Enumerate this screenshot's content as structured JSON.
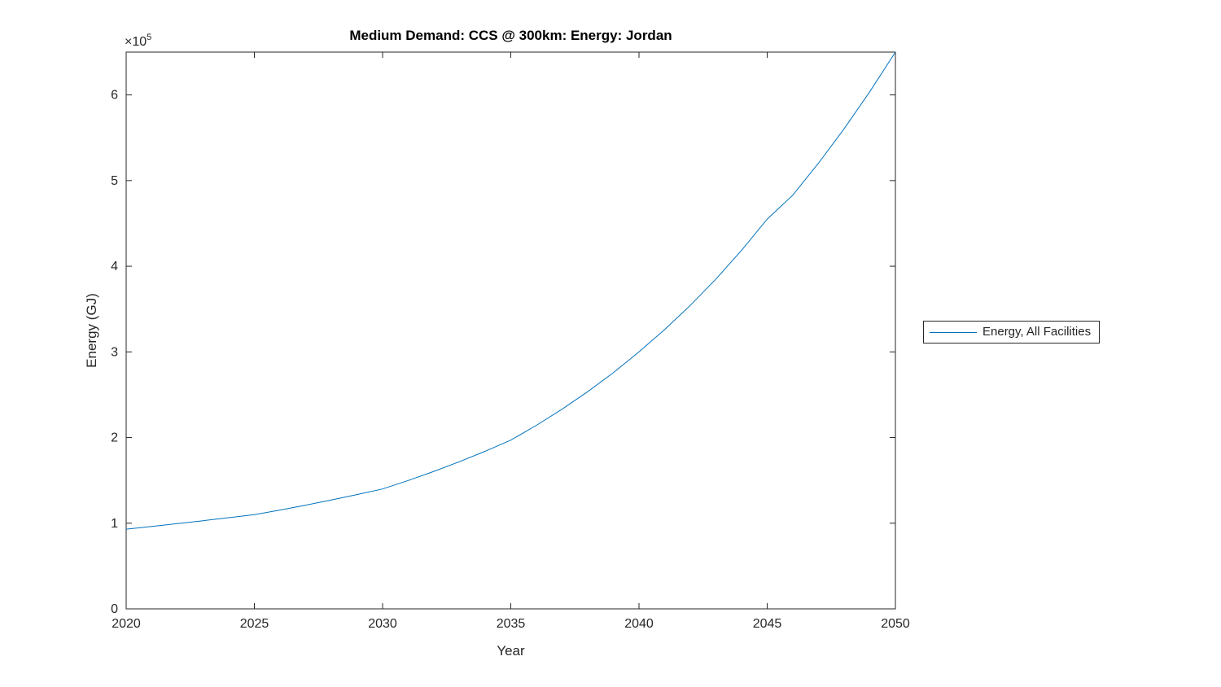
{
  "chart_data": {
    "type": "line",
    "title": "Medium Demand: CCS @ 300km: Energy: Jordan",
    "xlabel": "Year",
    "ylabel": "Energy (GJ)",
    "y_axis_exponent": {
      "base": "×10",
      "power": "5"
    },
    "xlim": [
      2020,
      2050
    ],
    "ylim": [
      0,
      650000
    ],
    "xticks": [
      2020,
      2025,
      2030,
      2035,
      2040,
      2045,
      2050
    ],
    "xtick_labels": [
      "2020",
      "2025",
      "2030",
      "2035",
      "2040",
      "2045",
      "2050"
    ],
    "yticks": [
      0,
      100000,
      200000,
      300000,
      400000,
      500000,
      600000
    ],
    "ytick_labels": [
      "0",
      "1",
      "2",
      "3",
      "4",
      "5",
      "6"
    ],
    "grid": false,
    "legend": {
      "position": "right-outside",
      "entries": [
        {
          "label": "Energy, All Facilities",
          "color": "#0072BD"
        }
      ]
    },
    "series": [
      {
        "name": "Energy, All Facilities",
        "color": "#0072BD",
        "x": [
          2020,
          2021,
          2022,
          2023,
          2024,
          2025,
          2026,
          2027,
          2028,
          2029,
          2030,
          2031,
          2032,
          2033,
          2034,
          2035,
          2036,
          2037,
          2038,
          2039,
          2040,
          2041,
          2042,
          2043,
          2044,
          2045,
          2046,
          2047,
          2048,
          2049,
          2050
        ],
        "y": [
          93000,
          96200,
          99500,
          102900,
          106400,
          110000,
          115400,
          121100,
          127100,
          133400,
          140000,
          149900,
          160500,
          171800,
          184000,
          197000,
          214300,
          233100,
          253500,
          275700,
          300000,
          326000,
          354300,
          385100,
          418500,
          455000,
          483000,
          520300,
          560500,
          603700,
          650000
        ]
      }
    ]
  },
  "colors": {
    "line": "#0072BD",
    "axis": "#262626",
    "text": "#262626",
    "title": "#000000",
    "background": "#FFFFFF"
  }
}
